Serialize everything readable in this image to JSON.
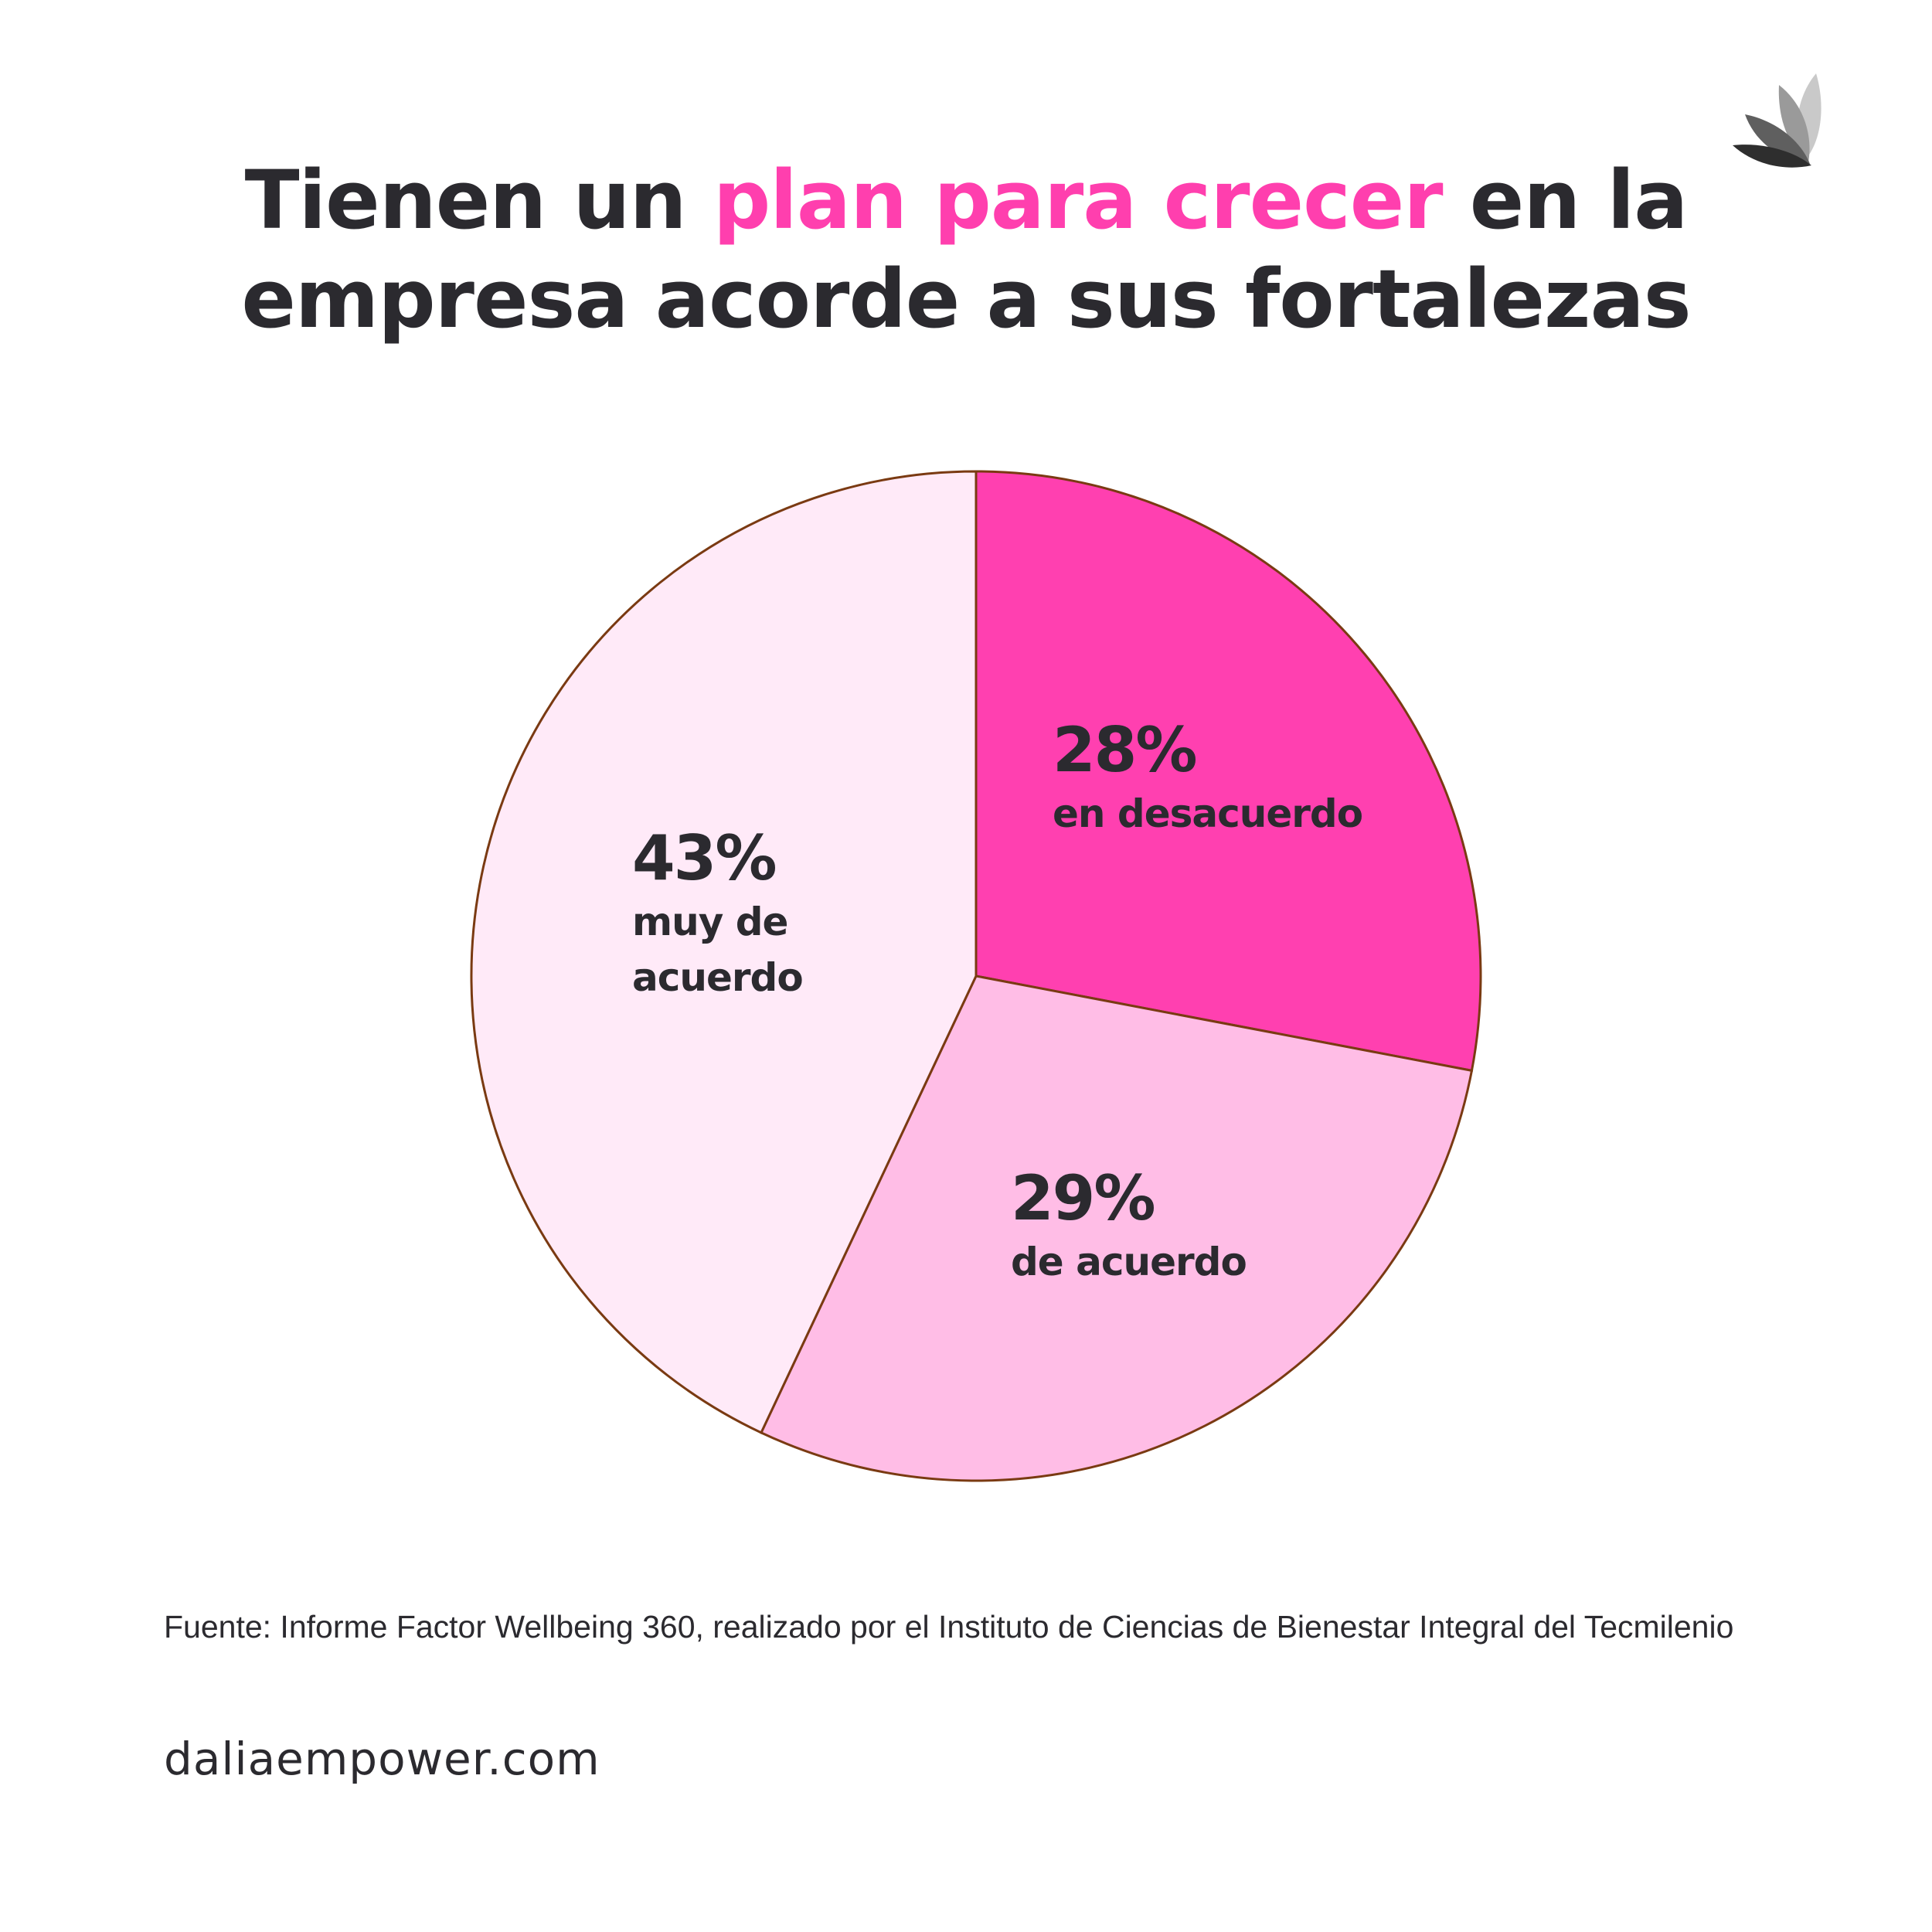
{
  "header": {
    "title_part1": "Tienen un ",
    "title_highlight": "plan para crecer",
    "title_part2": " en la",
    "title_line2": "empresa acorde a sus fortalezas",
    "highlight_color": "#ff3fae",
    "logo_icon": "dalia-leaf-logo-icon"
  },
  "chart_data": {
    "type": "pie",
    "start_angle_deg": 0,
    "direction": "clockwise",
    "edge_color": "#7a3a12",
    "slices": [
      {
        "value": 28,
        "pct_label": "28%",
        "label_lines": [
          "en desacuerdo"
        ],
        "color": "#ff40b0"
      },
      {
        "value": 29,
        "pct_label": "29%",
        "label_lines": [
          "de acuerdo"
        ],
        "color": "#ffbde6"
      },
      {
        "value": 43,
        "pct_label": "43%",
        "label_lines": [
          "muy de",
          "acuerdo"
        ],
        "color": "#ffeaf8"
      }
    ]
  },
  "footer": {
    "source": " Fuente: Informe Factor Wellbeing 360, realizado por el Instituto de Ciencias de Bienestar Integral del Tecmilenio",
    "website": "daliaempower.com"
  }
}
